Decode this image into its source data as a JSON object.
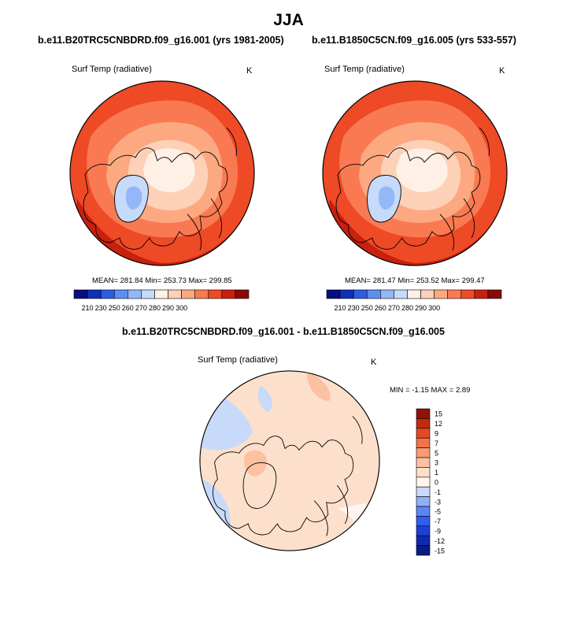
{
  "figure_title": "JJA",
  "colors": {
    "background": "#ffffff",
    "outline": "#000000",
    "abs_fills": [
      "#070e7f",
      "#1030b8",
      "#2e5ee0",
      "#5d8ef2",
      "#93b7f7",
      "#c6dafa",
      "#fff0e5",
      "#fdd1b8",
      "#fca981",
      "#f97a52",
      "#ee4a26",
      "#c8200f",
      "#8a0b06"
    ],
    "diff_fills": [
      "#0a1a86",
      "#1228b0",
      "#1e3fd6",
      "#2f5ef0",
      "#5a86f4",
      "#8fb0f7",
      "#c7daf9",
      "#fff5ee",
      "#fde0cc",
      "#fcc1a1",
      "#fb9b73",
      "#f47447",
      "#e34a22",
      "#c02b0e",
      "#8e1206"
    ]
  },
  "chart_data": [
    {
      "type": "heatmap",
      "projection": "polar-stereographic (north)",
      "title": "b.e11.B20TRC5CNBDRD.f09_g16.001 (yrs 1981-2005)",
      "variable": "Surf Temp (radiative)",
      "units": "K",
      "stats": {
        "mean": 281.84,
        "min": 253.73,
        "max": 299.85
      },
      "stats_text": "MEAN= 281.84  Min= 253.73  Max= 299.85",
      "colorbar": {
        "orientation": "horizontal",
        "levels": [
          210,
          220,
          230,
          240,
          250,
          260,
          265,
          270,
          275,
          280,
          285,
          290,
          295,
          300
        ],
        "tick_labels": [
          "210",
          "230",
          "250",
          "260",
          "270",
          "280",
          "290",
          "300"
        ]
      }
    },
    {
      "type": "heatmap",
      "projection": "polar-stereographic (north)",
      "title": "b.e11.B1850C5CN.f09_g16.005 (yrs 533-557)",
      "variable": "Surf Temp (radiative)",
      "units": "K",
      "stats": {
        "mean": 281.47,
        "min": 253.52,
        "max": 299.47
      },
      "stats_text": "MEAN= 281.47  Min= 253.52  Max= 299.47",
      "colorbar": {
        "orientation": "horizontal",
        "levels": [
          210,
          220,
          230,
          240,
          250,
          260,
          265,
          270,
          275,
          280,
          285,
          290,
          295,
          300
        ],
        "tick_labels": [
          "210",
          "230",
          "250",
          "260",
          "270",
          "280",
          "290",
          "300"
        ]
      }
    },
    {
      "type": "heatmap",
      "projection": "polar-stereographic (north)",
      "title": "b.e11.B20TRC5CNBDRD.f09_g16.001 - b.e11.B1850C5CN.f09_g16.005",
      "variable": "Surf Temp (radiative)",
      "units": "K",
      "stats": {
        "min": -1.15,
        "max": 2.89
      },
      "stats_text": "MIN =  -1.15 MAX =   2.89",
      "colorbar": {
        "orientation": "vertical",
        "tick_labels_top_to_bottom": [
          "15",
          "12",
          "9",
          "7",
          "5",
          "3",
          "1",
          "0",
          "-1",
          "-3",
          "-5",
          "-7",
          "-9",
          "-12",
          "-15"
        ]
      }
    }
  ]
}
